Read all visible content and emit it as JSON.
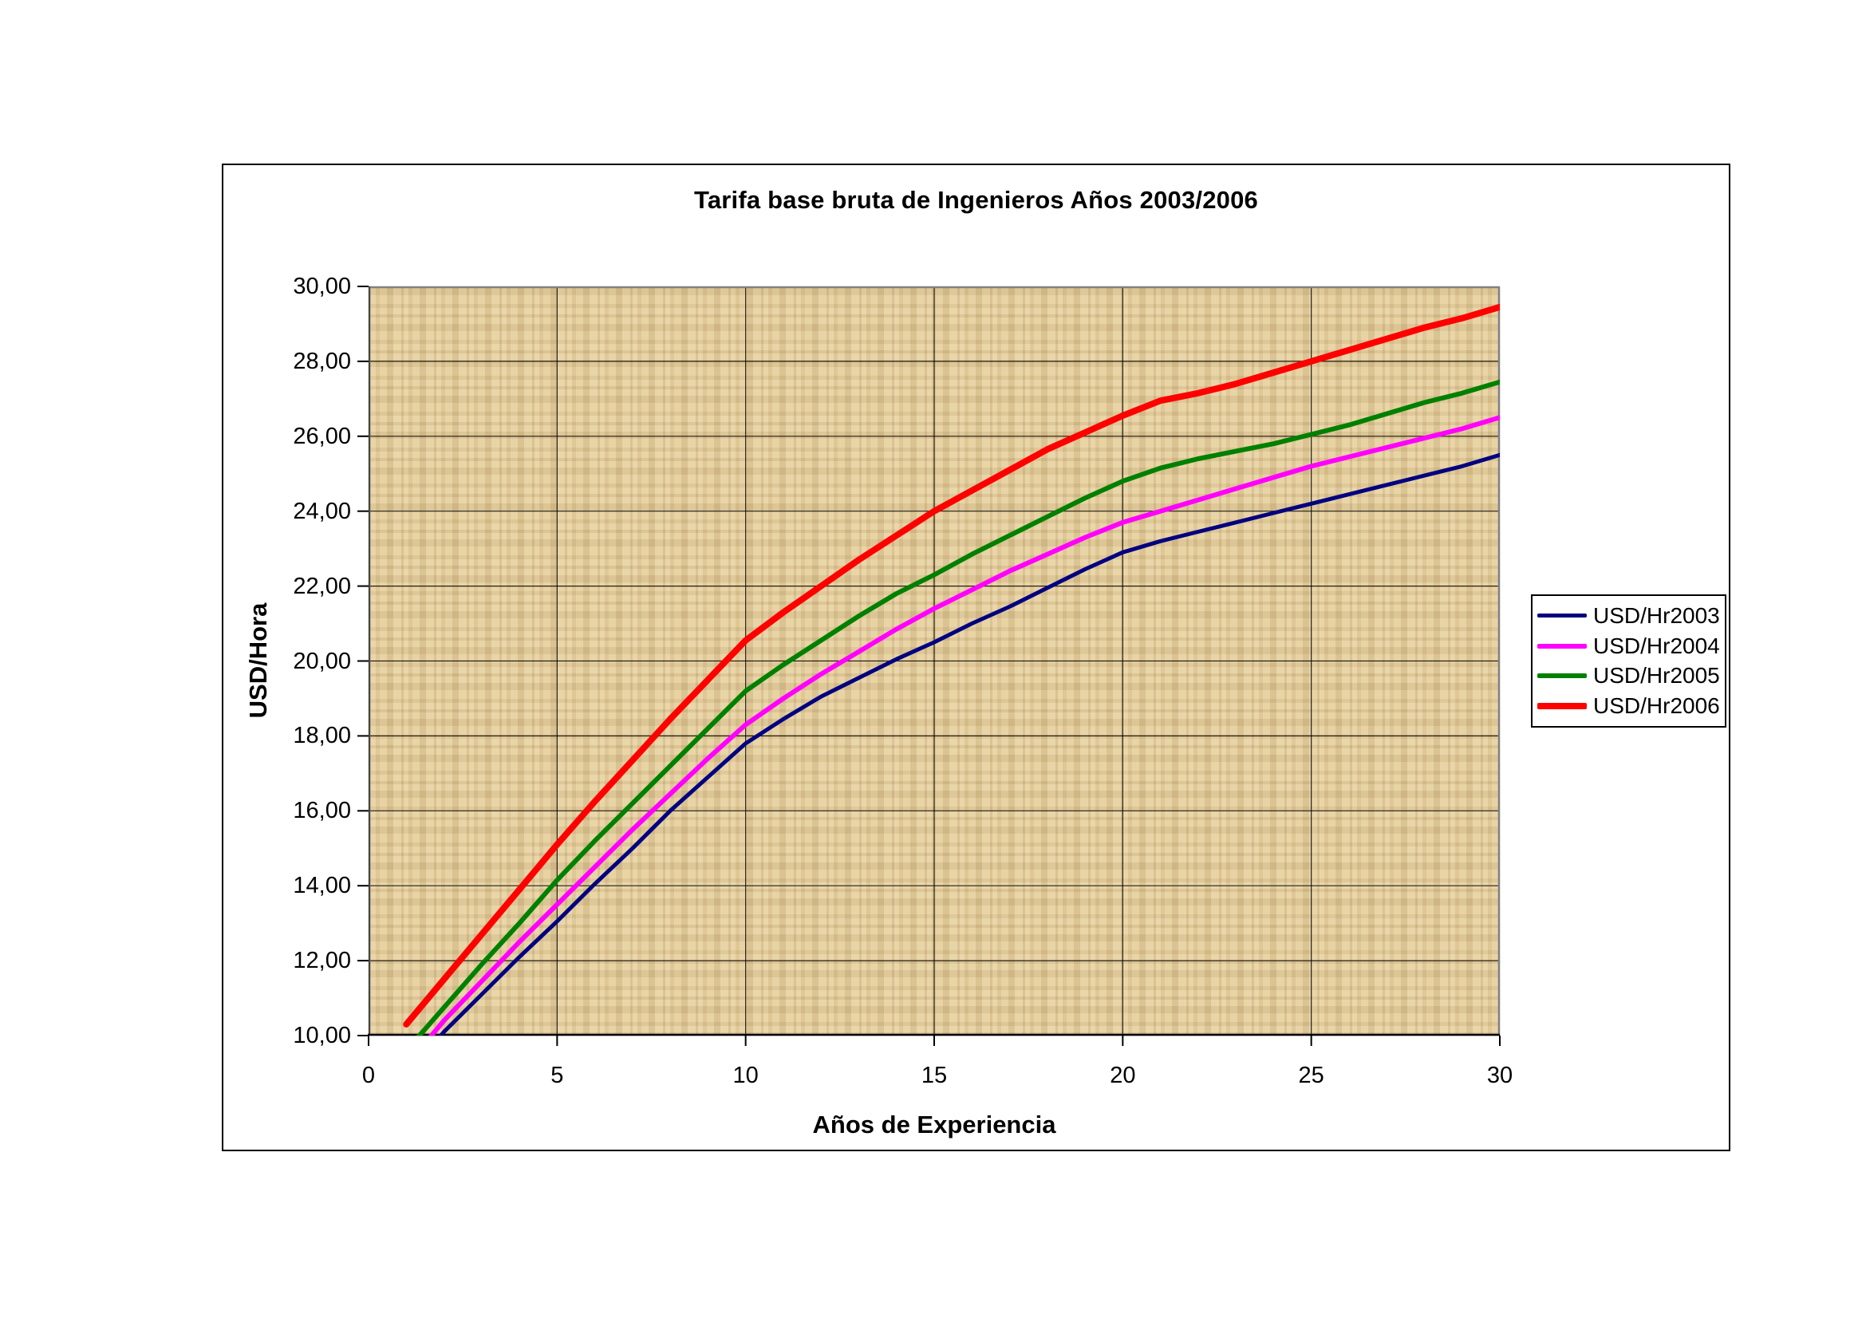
{
  "chart_data": {
    "type": "line",
    "title": "Tarifa base bruta de Ingenieros Años 2003/2006",
    "xlabel": "Años de Experiencia",
    "ylabel": "USD/Hora",
    "xlim": [
      0,
      30
    ],
    "ylim": [
      10,
      30
    ],
    "grid": true,
    "legend_position": "right",
    "x_ticks": {
      "values": [
        0,
        5,
        10,
        15,
        20,
        25,
        30
      ],
      "labels": [
        "0",
        "5",
        "10",
        "15",
        "20",
        "25",
        "30"
      ]
    },
    "y_ticks": {
      "values": [
        10,
        12,
        14,
        16,
        18,
        20,
        22,
        24,
        26,
        28,
        30
      ],
      "labels": [
        "10,00",
        "12,00",
        "14,00",
        "16,00",
        "18,00",
        "20,00",
        "22,00",
        "24,00",
        "26,00",
        "28,00",
        "30,00"
      ]
    },
    "x": [
      1,
      2,
      3,
      4,
      5,
      6,
      7,
      8,
      9,
      10,
      11,
      12,
      13,
      14,
      15,
      16,
      17,
      18,
      19,
      20,
      21,
      22,
      23,
      24,
      25,
      26,
      27,
      28,
      29,
      30
    ],
    "series": [
      {
        "name": "USD/Hr2003",
        "color": "#000080",
        "width": 5,
        "values": [
          8.9,
          10.1,
          11.1,
          12.1,
          13.05,
          14.05,
          15.0,
          16.0,
          16.9,
          17.8,
          18.45,
          19.05,
          19.55,
          20.05,
          20.5,
          21.0,
          21.45,
          21.95,
          22.45,
          22.9,
          23.2,
          23.45,
          23.7,
          23.95,
          24.2,
          24.45,
          24.7,
          24.95,
          25.2,
          25.5
        ]
      },
      {
        "name": "USD/Hr2004",
        "color": "#FF00FF",
        "width": 6,
        "values": [
          9.2,
          10.4,
          11.45,
          12.5,
          13.5,
          14.5,
          15.5,
          16.45,
          17.4,
          18.3,
          19.0,
          19.65,
          20.25,
          20.85,
          21.4,
          21.9,
          22.4,
          22.85,
          23.3,
          23.7,
          24.0,
          24.3,
          24.6,
          24.9,
          25.2,
          25.45,
          25.7,
          25.95,
          26.2,
          26.5
        ]
      },
      {
        "name": "USD/Hr2005",
        "color": "#008000",
        "width": 6,
        "values": [
          9.6,
          10.75,
          11.9,
          13.0,
          14.15,
          15.2,
          16.2,
          17.2,
          18.2,
          19.2,
          19.9,
          20.55,
          21.2,
          21.8,
          22.3,
          22.85,
          23.35,
          23.85,
          24.35,
          24.8,
          25.15,
          25.4,
          25.6,
          25.8,
          26.05,
          26.3,
          26.6,
          26.9,
          27.15,
          27.45
        ]
      },
      {
        "name": "USD/Hr2006",
        "color": "#FF0000",
        "width": 8,
        "values": [
          10.3,
          11.5,
          12.7,
          13.9,
          15.1,
          16.25,
          17.35,
          18.45,
          19.5,
          20.55,
          21.3,
          22.0,
          22.7,
          23.35,
          24.0,
          24.55,
          25.1,
          25.65,
          26.1,
          26.55,
          26.95,
          27.15,
          27.4,
          27.7,
          28.0,
          28.3,
          28.6,
          28.9,
          29.15,
          29.45
        ]
      }
    ]
  },
  "colors": {
    "page_bg": "#FFFFFF",
    "plot_bg": "#E3CC9B",
    "gridline": "#000000",
    "plot_border": "#808080",
    "axis_line": "#000000",
    "frame_border": "#000000"
  }
}
